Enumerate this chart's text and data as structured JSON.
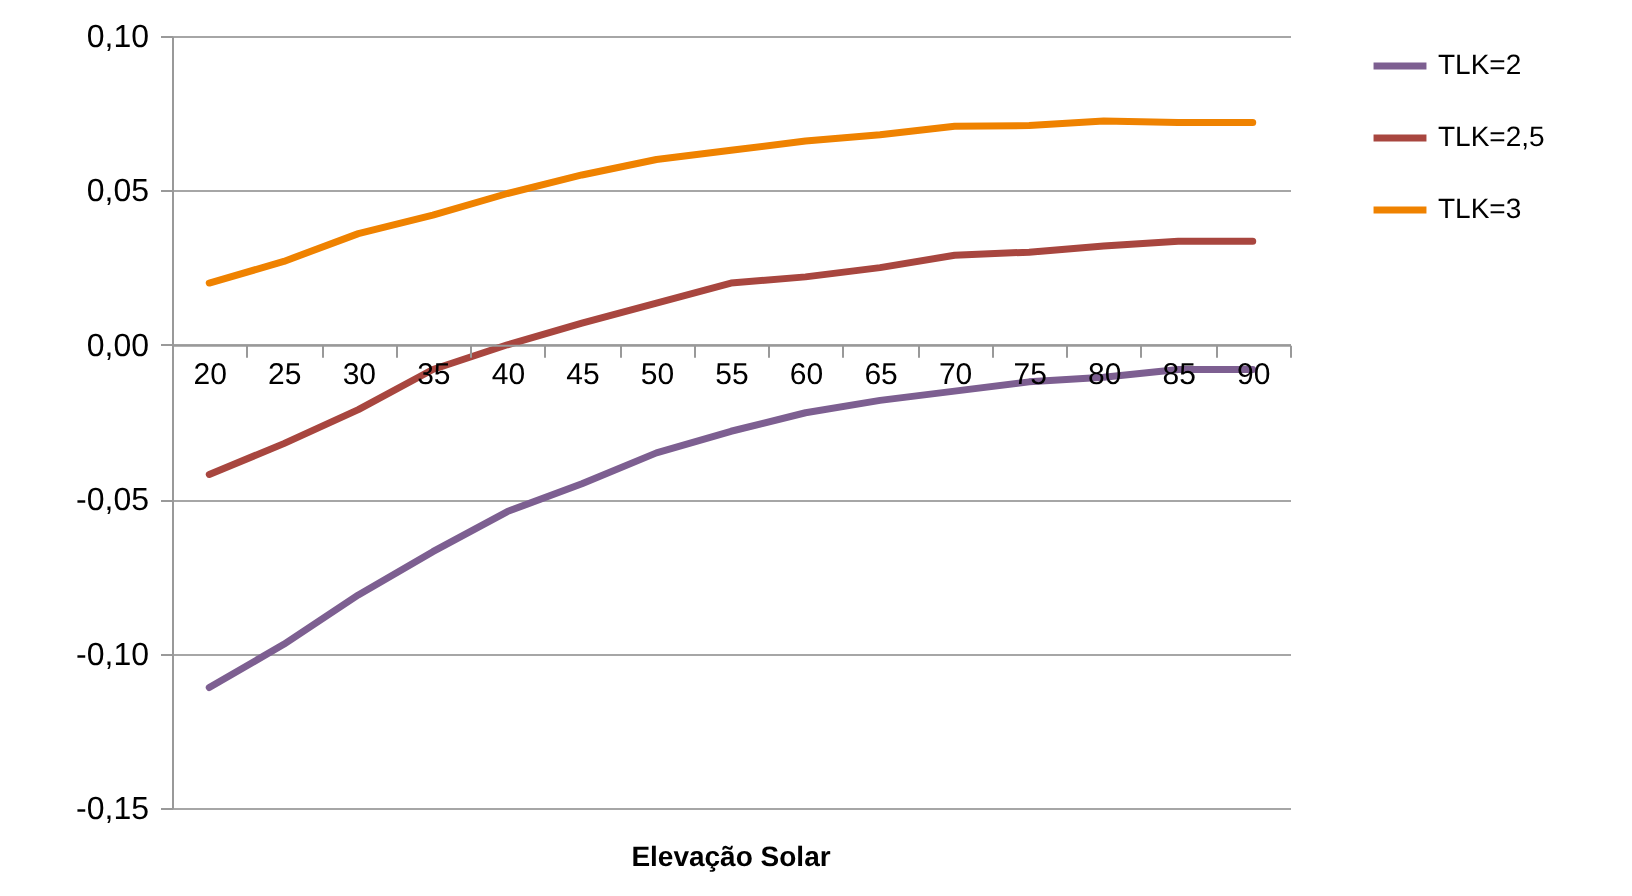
{
  "chart_data": {
    "type": "line",
    "xlabel": "Elevação Solar",
    "categories": [
      "20",
      "25",
      "30",
      "35",
      "40",
      "45",
      "50",
      "55",
      "60",
      "65",
      "70",
      "75",
      "80",
      "85",
      "90"
    ],
    "series": [
      {
        "name": "TLK=2",
        "color": "#7d5f91",
        "values": [
          -0.111,
          -0.097,
          -0.081,
          -0.067,
          -0.054,
          -0.045,
          -0.035,
          -0.028,
          -0.022,
          -0.018,
          -0.015,
          -0.012,
          -0.0105,
          -0.008,
          -0.008
        ]
      },
      {
        "name": "TLK=2,5",
        "color": "#a8463f",
        "values": [
          -0.042,
          -0.032,
          -0.021,
          -0.008,
          0.0,
          0.007,
          0.0135,
          0.02,
          0.022,
          0.025,
          0.029,
          0.03,
          0.032,
          0.0335,
          0.0335
        ]
      },
      {
        "name": "TLK=3",
        "color": "#ef8200",
        "values": [
          0.02,
          0.027,
          0.036,
          0.042,
          0.049,
          0.055,
          0.06,
          0.063,
          0.066,
          0.068,
          0.0708,
          0.071,
          0.0725,
          0.072,
          0.072
        ]
      }
    ],
    "ylim": [
      -0.15,
      0.1
    ],
    "yticks": [
      {
        "value": -0.15,
        "label": "-0,15"
      },
      {
        "value": -0.1,
        "label": "-0,10"
      },
      {
        "value": -0.05,
        "label": "-0,05"
      },
      {
        "value": 0,
        "label": "0,00"
      },
      {
        "value": 0.05,
        "label": "0,05"
      },
      {
        "value": 0.1,
        "label": "0,10"
      }
    ],
    "grid": "y",
    "legend": "right",
    "marker": "none",
    "line_style": "solid"
  }
}
